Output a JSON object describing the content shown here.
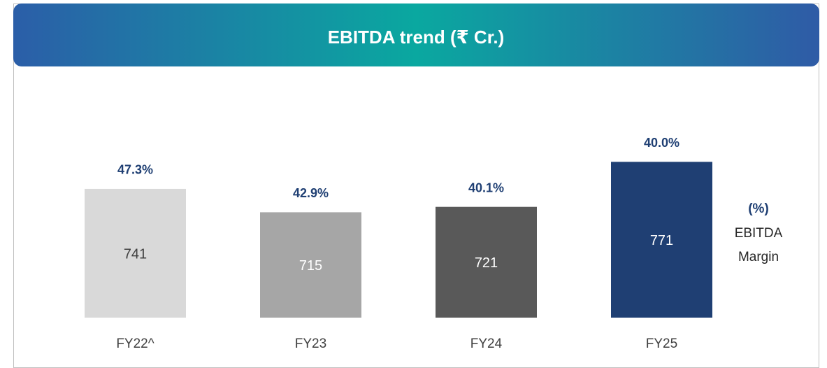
{
  "chart_data": {
    "type": "bar",
    "title": "EBITDA trend (₹ Cr.)",
    "categories": [
      "FY22^",
      "FY23",
      "FY24",
      "FY25"
    ],
    "values": [
      741,
      715,
      721,
      771
    ],
    "colors": [
      "#d9d9d9",
      "#a6a6a6",
      "#595959",
      "#1f3f73"
    ],
    "ylim": [
      598,
      800
    ],
    "margin": {
      "values": [
        47.3,
        42.9,
        40.1,
        40.0
      ],
      "value_labels": [
        "47.3%",
        "42.9%",
        "40.1%",
        "40.0%"
      ]
    },
    "legend": {
      "symbol": "(%)",
      "lines": [
        "EBITDA",
        "Margin"
      ]
    }
  }
}
